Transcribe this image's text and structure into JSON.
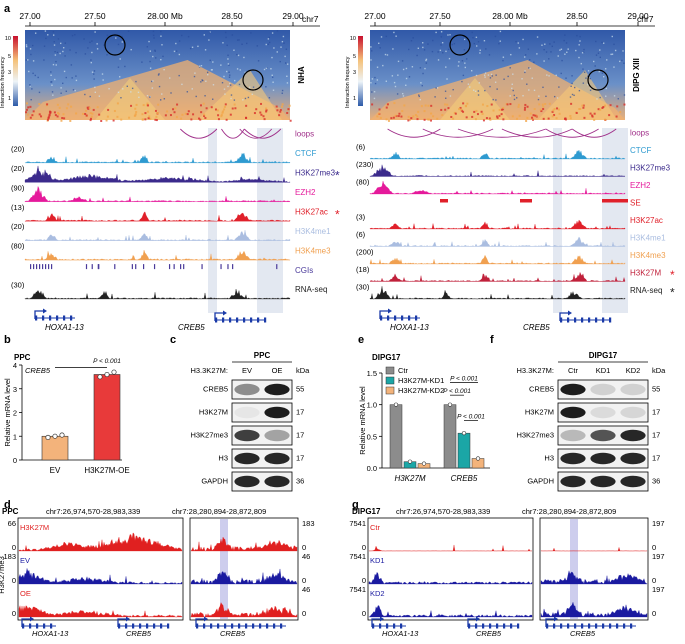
{
  "panel_letters": {
    "a": "a",
    "b": "b",
    "c": "c",
    "d": "d",
    "e": "e",
    "f": "f",
    "g": "g"
  },
  "panel_a": {
    "axis_ticks": [
      "27.00",
      "27.50",
      "28.00 Mb",
      "28.50",
      "29.00"
    ],
    "chrom": "chr7",
    "colorbar_ticks": [
      "10",
      "5",
      "3",
      "1"
    ],
    "colorbar_label": "Interaction frequency",
    "left": {
      "sample": "NHA",
      "tracks": [
        {
          "label": "loops",
          "scale": "",
          "color": "#a0308a"
        },
        {
          "label": "CTCF",
          "scale": "(20)",
          "color": "#2e9ad0"
        },
        {
          "label": "H3K27me3",
          "scale": "(20)",
          "color": "#3b2a8c",
          "star": "*",
          "star_color": "#3b2a8c"
        },
        {
          "label": "EZH2",
          "scale": "(90)",
          "color": "#e5199b"
        },
        {
          "label": "H3K27ac",
          "scale": "(13)",
          "color": "#e0202a",
          "star": "*",
          "star_color": "#e0202a"
        },
        {
          "label": "H3K4me1",
          "scale": "(20)",
          "color": "#aabde0"
        },
        {
          "label": "H3K4me3",
          "scale": "(80)",
          "color": "#f0a050"
        },
        {
          "label": "CGIs",
          "scale": "",
          "color": "#4a3a9a"
        },
        {
          "label": "RNA-seq",
          "scale": "(30)",
          "color": "#222222"
        }
      ],
      "genes": [
        "HOXA1-13",
        "CREB5"
      ]
    },
    "right": {
      "sample": "DIPG XIII",
      "tracks": [
        {
          "label": "loops",
          "scale": "",
          "color": "#a0308a"
        },
        {
          "label": "CTCF",
          "scale": "(6)",
          "color": "#2e9ad0"
        },
        {
          "label": "H3K27me3",
          "scale": "(230)",
          "color": "#3b2a8c"
        },
        {
          "label": "EZH2",
          "scale": "(80)",
          "color": "#e5199b"
        },
        {
          "label": "SE",
          "scale": "",
          "color": "#e0202a"
        },
        {
          "label": "H3K27ac",
          "scale": "(3)",
          "color": "#e0202a"
        },
        {
          "label": "H3K4me1",
          "scale": "(6)",
          "color": "#aabde0"
        },
        {
          "label": "H3K4me3",
          "scale": "(200)",
          "color": "#f0a050"
        },
        {
          "label": "H3K27M",
          "scale": "(18)",
          "color": "#c0203a",
          "star": "*",
          "star_color": "#e0202a"
        },
        {
          "label": "RNA-seq",
          "scale": "(30)",
          "color": "#222222",
          "star": "*",
          "star_color": "#222222"
        }
      ],
      "genes": [
        "HOXA1-13",
        "CREB5"
      ]
    }
  },
  "panel_b": {
    "title": "PPC",
    "gene": "CREB5",
    "ylabel": "Relative mRNA level",
    "yticks": [
      "0",
      "1",
      "2",
      "3",
      "4"
    ],
    "pvalue": "P < 0.001",
    "xcategories": [
      "EV",
      "H3K27M-OE"
    ]
  },
  "panel_c": {
    "title": "PPC",
    "header_label": "H3.3K27M:",
    "columns": [
      "EV",
      "OE"
    ],
    "kda_label": "kDa",
    "rows": [
      {
        "label": "CREB5",
        "kda": "55"
      },
      {
        "label": "H3K27M",
        "kda": "17"
      },
      {
        "label": "H3K27me3",
        "kda": "17"
      },
      {
        "label": "H3",
        "kda": "17"
      },
      {
        "label": "GAPDH",
        "kda": "36"
      }
    ]
  },
  "panel_e": {
    "title": "DIPG17",
    "ylabel": "Relative mRNA level",
    "yticks": [
      "0.0",
      "0.5",
      "1.0",
      "1.5"
    ],
    "legend": [
      "Ctr",
      "H3K27M-KD1",
      "H3K27M-KD2"
    ],
    "pvalues": [
      "P < 0.001",
      "P < 0.001",
      "P < 0.001"
    ],
    "xcategories": [
      "H3K27M",
      "CREB5"
    ]
  },
  "panel_f": {
    "title": "DIPG17",
    "header_label": "H3.3K27M:",
    "columns": [
      "Ctr",
      "KD1",
      "KD2"
    ],
    "kda_label": "kDa",
    "rows": [
      {
        "label": "CREB5",
        "kda": "55"
      },
      {
        "label": "H3K27M",
        "kda": "17"
      },
      {
        "label": "H3K27me3",
        "kda": "17"
      },
      {
        "label": "H3",
        "kda": "17"
      },
      {
        "label": "GAPDH",
        "kda": "36"
      }
    ]
  },
  "panel_d": {
    "title": "PPC",
    "region1": "chr7:26,974,570-28,983,339",
    "region2": "chr7:28,280,894-28,872,809",
    "side_label": "H3K27me3",
    "tracks": [
      {
        "label": "H3K27M",
        "left_scale": "66",
        "right_scale": "183",
        "color": "#e02020"
      },
      {
        "label": "EV",
        "left_scale": "183",
        "right_scale": "46",
        "color": "#1a1aa0"
      },
      {
        "label": "OE",
        "left_scale": "",
        "right_scale": "46",
        "color": "#e02020"
      }
    ],
    "zero": "0",
    "genes": [
      "HOXA1-13",
      "CREB5",
      "CREB5"
    ]
  },
  "panel_g": {
    "title": "DIPG17",
    "region1": "chr7:26,974,570-28,983,339",
    "region2": "chr7:28,280,894-28,872,809",
    "tracks": [
      {
        "label": "Ctr",
        "left_scale": "7541",
        "right_scale": "197",
        "color": "#e02020"
      },
      {
        "label": "KD1",
        "left_scale": "7541",
        "right_scale": "197",
        "color": "#1a1aa0"
      },
      {
        "label": "KD2",
        "left_scale": "7541",
        "right_scale": "197",
        "color": "#1a1aa0"
      }
    ],
    "zero": "0",
    "genes": [
      "HOXA1-13",
      "CREB5",
      "CREB5"
    ]
  },
  "chart_data": [
    {
      "type": "bar",
      "title": "PPC",
      "categories": [
        "EV",
        "H3K27M-OE"
      ],
      "values": [
        1.0,
        3.6
      ],
      "points": [
        [
          0.95,
          1.0,
          1.05
        ],
        [
          3.5,
          3.6,
          3.7
        ]
      ],
      "colors": [
        "#f3b37b",
        "#e83a3a"
      ],
      "ylabel": "Relative mRNA level",
      "ylim": [
        0,
        4
      ]
    },
    {
      "type": "bar",
      "title": "DIPG17",
      "categories": [
        "H3K27M",
        "CREB5"
      ],
      "series": [
        {
          "name": "Ctr",
          "values": [
            1.0,
            1.0
          ],
          "color": "#8c8c8c"
        },
        {
          "name": "H3K27M-KD1",
          "values": [
            0.1,
            0.55
          ],
          "color": "#1ba6a6"
        },
        {
          "name": "H3K27M-KD2",
          "values": [
            0.07,
            0.15
          ],
          "color": "#f3b37b"
        }
      ],
      "ylabel": "Relative mRNA level",
      "ylim": [
        0,
        1.5
      ]
    }
  ]
}
